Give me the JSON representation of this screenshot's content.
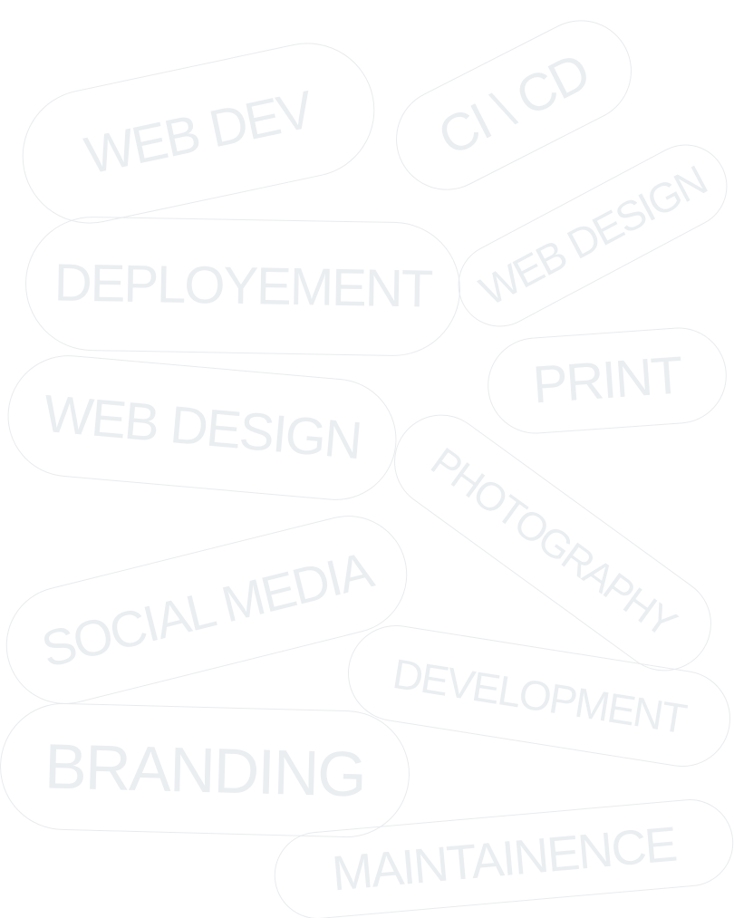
{
  "tags": [
    {
      "id": "web-dev",
      "label": "WEB DEV"
    },
    {
      "id": "ci-cd",
      "label": "CI \\ CD"
    },
    {
      "id": "deployement",
      "label": "DEPLOYEMENT"
    },
    {
      "id": "web-design-1",
      "label": "WEB DESIGN"
    },
    {
      "id": "print",
      "label": "PRINT"
    },
    {
      "id": "web-design-2",
      "label": "WEB DESIGN"
    },
    {
      "id": "photography",
      "label": "PHOTOGRAPHY"
    },
    {
      "id": "social-media",
      "label": "SOCIAL MEDIA"
    },
    {
      "id": "development",
      "label": "DEVELOPMENT"
    },
    {
      "id": "branding",
      "label": "BRANDING"
    },
    {
      "id": "maintainence",
      "label": "MAINTAINENCE"
    }
  ],
  "colors": {
    "background": "#ffffff",
    "pill_border": "#e8ebee",
    "pill_text": "#eaeef1"
  }
}
